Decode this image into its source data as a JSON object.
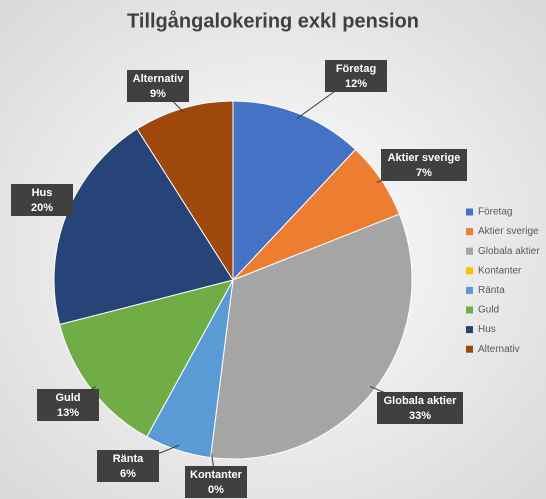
{
  "chart_data": {
    "type": "pie",
    "title": "Tillgångalokering exkl pension",
    "categories": [
      "Företag",
      "Aktier sverige",
      "Globala aktier",
      "Kontanter",
      "Ränta",
      "Guld",
      "Hus",
      "Alternativ"
    ],
    "values": [
      12,
      7,
      33,
      0,
      6,
      13,
      20,
      9
    ],
    "value_labels": [
      "12%",
      "7%",
      "33%",
      "0%",
      "6%",
      "13%",
      "20%",
      "9%"
    ],
    "colors": [
      "#4472c4",
      "#ed7d31",
      "#a5a5a5",
      "#ffc000",
      "#5b9bd5",
      "#70ad47",
      "#264478",
      "#9e480e"
    ],
    "legend": "right"
  }
}
